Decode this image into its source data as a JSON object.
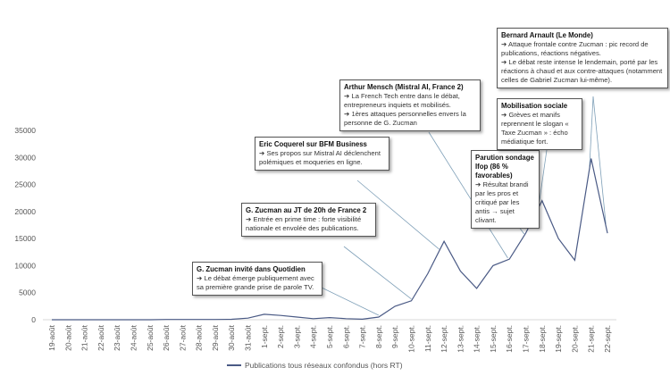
{
  "chart_data": {
    "type": "line",
    "title": "",
    "xlabel": "",
    "ylabel": "",
    "ylim": [
      0,
      35000
    ],
    "yticks": [
      0,
      5000,
      10000,
      15000,
      20000,
      25000,
      30000,
      35000
    ],
    "categories": [
      "19-août",
      "20-août",
      "21-août",
      "22-août",
      "23-août",
      "24-août",
      "25-août",
      "26-août",
      "27-août",
      "28-août",
      "29-août",
      "30-août",
      "31-août",
      "1-sept.",
      "2-sept.",
      "3-sept.",
      "4-sept.",
      "5-sept.",
      "6-sept.",
      "7-sept.",
      "8-sept.",
      "9-sept.",
      "10-sept.",
      "11-sept.",
      "12-sept.",
      "13-sept.",
      "14-sept.",
      "15-sept.",
      "16-sept.",
      "17-sept.",
      "18-sept.",
      "19-sept.",
      "20-sept.",
      "21-sept.",
      "22-sept."
    ],
    "series": [
      {
        "name": "Publications tous réseaux confondus (hors RT)",
        "color": "#4a5a85",
        "values": [
          0,
          0,
          0,
          0,
          0,
          0,
          0,
          50,
          50,
          50,
          50,
          80,
          300,
          1000,
          800,
          500,
          200,
          400,
          200,
          100,
          500,
          2500,
          3500,
          8500,
          14500,
          9000,
          5800,
          10000,
          11200,
          16000,
          22000,
          15000,
          11000,
          29800,
          16000
        ]
      }
    ],
    "legend": "bottom",
    "grid": false,
    "annotations": [
      {
        "title": "G. Zucman invité dans Quotidien",
        "lines": [
          "➔ Le débat émerge publiquement avec sa première grande prise de parole TV."
        ],
        "target": "8-sept."
      },
      {
        "title": "G. Zucman au JT de 20h de France 2",
        "lines": [
          "➔ Entrée en prime time  : forte visibilité nationale et envolée des publications."
        ],
        "target": "10-sept."
      },
      {
        "title": "Eric Coquerel sur BFM Business",
        "lines": [
          "➔ Ses propos sur Mistral AI déclenchent polémiques et moqueries en ligne."
        ],
        "target": "12-sept."
      },
      {
        "title": "Arthur Mensch (Mistral AI, France 2)",
        "lines": [
          "➔ La French Tech entre dans le débat, entrepreneurs inquiets et mobilisés.",
          "➔ 1ères attaques personnelles envers la personne de G. Zucman"
        ],
        "target": "16-sept."
      },
      {
        "title": "Parution sondage Ifop (86 % favorables)",
        "lines": [
          "➔ Résultat brandi par les pros et critiqué par les antis → sujet clivant."
        ],
        "target": "17-sept."
      },
      {
        "title": "Mobilisation sociale",
        "lines": [
          "➔ Grèves et manifs reprennent le slogan « Taxe Zucman » : écho médiatique fort."
        ],
        "target": "18-sept."
      },
      {
        "title": "Bernard Arnault (Le Monde)",
        "lines": [
          "➔ Attaque frontale contre Zucman : pic record de publications, réactions négatives.",
          "➔ Le débat reste intense le lendemain, porté par les réactions à chaud et aux contre-attaques (notamment celles de Gabriel Zucman lui-même)."
        ],
        "target": "21-sept."
      }
    ]
  }
}
